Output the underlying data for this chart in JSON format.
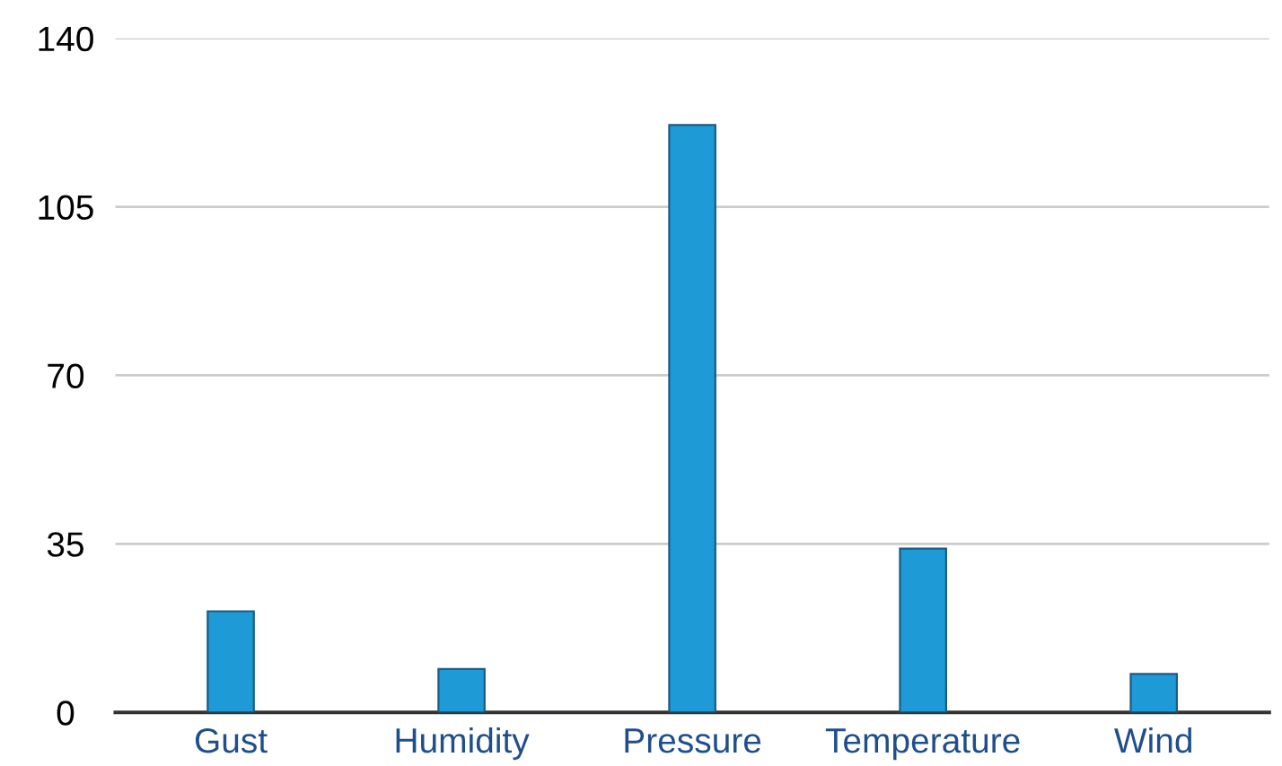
{
  "chart_data": {
    "type": "bar",
    "categories": [
      "Gust",
      "Humidity",
      "Pressure",
      "Temperature",
      "Wind"
    ],
    "values": [
      21,
      9,
      122,
      34,
      8
    ],
    "color": "#1e9ad6",
    "ylim": [
      0,
      140
    ],
    "yticks": [
      0,
      35,
      70,
      105,
      140
    ],
    "grid": "y"
  }
}
